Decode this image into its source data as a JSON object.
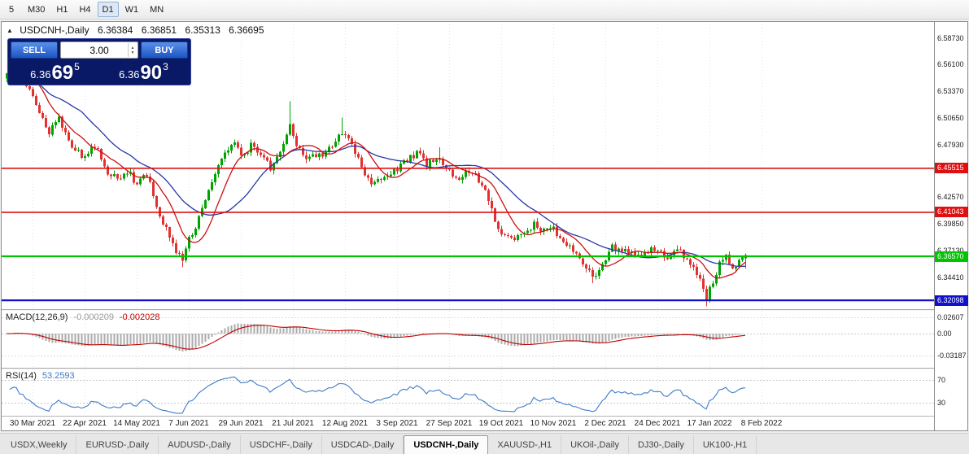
{
  "toolbar": {
    "timeframes": [
      {
        "label": "5"
      },
      {
        "label": "M30"
      },
      {
        "label": "H1"
      },
      {
        "label": "H4"
      },
      {
        "label": "D1",
        "active": true
      },
      {
        "label": "W1"
      },
      {
        "label": "MN"
      }
    ]
  },
  "chart": {
    "title": "USDCNH-,Daily",
    "ohlc": {
      "open": "6.36384",
      "high": "6.36851",
      "low": "6.35313",
      "close": "6.36695"
    },
    "trade_panel": {
      "sell_label": "SELL",
      "buy_label": "BUY",
      "volume": "3.00",
      "bid": {
        "small": "6.36",
        "main": "69",
        "sup": "5"
      },
      "ask": {
        "small": "6.36",
        "main": "90",
        "sup": "3"
      }
    },
    "hlines": [
      {
        "label": "6.45515",
        "value": 6.45515,
        "color_key": "hline_red"
      },
      {
        "label": "6.41043",
        "value": 6.41043,
        "color_key": "hline_red"
      },
      {
        "label": "6.36570",
        "value": 6.3657,
        "color_key": "hline_green"
      },
      {
        "label": "6.32098",
        "value": 6.32098,
        "color_key": "hline_blue"
      }
    ],
    "scale_labels": [
      "6.58730",
      "6.56100",
      "6.53370",
      "6.50650",
      "6.47930",
      "6.42570",
      "6.39850",
      "6.37130",
      "6.34410"
    ]
  },
  "indicators": {
    "macd": {
      "name_label": "MACD(12,26,9)",
      "value": "-0.000209",
      "signal": "-0.002028",
      "scale": [
        "0.02607",
        "0.00",
        "-0.03187"
      ]
    },
    "rsi": {
      "name_label": "RSI(14)",
      "value": "53.2593",
      "levels": [
        "70",
        "30"
      ]
    }
  },
  "x_axis": {
    "dates": [
      "30 Mar 2021",
      "22 Apr 2021",
      "14 May 2021",
      "7 Jun 2021",
      "29 Jun 2021",
      "21 Jul 2021",
      "12 Aug 2021",
      "3 Sep 2021",
      "27 Sep 2021",
      "19 Oct 2021",
      "10 Nov 2021",
      "2 Dec 2021",
      "24 Dec 2021",
      "17 Jan 2022",
      "8 Feb 2022"
    ]
  },
  "tabs": [
    {
      "label": "USDX,Weekly"
    },
    {
      "label": "EURUSD-,Daily"
    },
    {
      "label": "AUDUSD-,Daily"
    },
    {
      "label": "USDCHF-,Daily"
    },
    {
      "label": "USDCAD-,Daily"
    },
    {
      "label": "USDCNH-,Daily",
      "active": true
    },
    {
      "label": "XAUUSD-,H1"
    },
    {
      "label": "UKOil-,Daily"
    },
    {
      "label": "DJ30-,Daily"
    },
    {
      "label": "UK100-,H1"
    }
  ],
  "colors": {
    "bull": "#00A400",
    "bear": "#E03232",
    "ma_fast": "#CC1111",
    "ma_slow": "#2937A6",
    "macd_hist": "#ABABAB",
    "macd_signal": "#C00000",
    "rsi_line": "#3E7BC8",
    "hline_red": "#DD1111",
    "hline_green": "#00C400",
    "hline_blue": "#1111CC",
    "grid": "#E4E4E4",
    "level_dots": "#C8C8C8",
    "panel_bg": "#0A1966",
    "button_blue": "#2A66D9"
  },
  "chart_data": {
    "type": "candlestick",
    "symbol": "USDCNH",
    "timeframe": "Daily",
    "candle_count": 228,
    "price_axis": {
      "min": 6.3136,
      "max": 6.6014
    },
    "last_candle": {
      "open": 6.36384,
      "high": 6.36851,
      "low": 6.35313,
      "close": 6.36695
    },
    "close_anchors": [
      [
        0,
        6.548
      ],
      [
        2,
        6.558
      ],
      [
        5,
        6.545
      ],
      [
        9,
        6.52
      ],
      [
        13,
        6.492
      ],
      [
        16,
        6.506
      ],
      [
        20,
        6.478
      ],
      [
        24,
        6.466
      ],
      [
        27,
        6.479
      ],
      [
        31,
        6.452
      ],
      [
        34,
        6.444
      ],
      [
        37,
        6.452
      ],
      [
        40,
        6.44
      ],
      [
        43,
        6.45
      ],
      [
        46,
        6.417
      ],
      [
        49,
        6.392
      ],
      [
        52,
        6.372
      ],
      [
        54,
        6.364
      ],
      [
        56,
        6.383
      ],
      [
        58,
        6.396
      ],
      [
        61,
        6.424
      ],
      [
        64,
        6.452
      ],
      [
        67,
        6.47
      ],
      [
        70,
        6.483
      ],
      [
        72,
        6.466
      ],
      [
        75,
        6.479
      ],
      [
        78,
        6.47
      ],
      [
        81,
        6.455
      ],
      [
        84,
        6.47
      ],
      [
        87,
        6.497
      ],
      [
        89,
        6.48
      ],
      [
        92,
        6.465
      ],
      [
        96,
        6.468
      ],
      [
        100,
        6.477
      ],
      [
        103,
        6.492
      ],
      [
        106,
        6.479
      ],
      [
        109,
        6.458
      ],
      [
        112,
        6.437
      ],
      [
        115,
        6.446
      ],
      [
        119,
        6.453
      ],
      [
        123,
        6.462
      ],
      [
        126,
        6.472
      ],
      [
        129,
        6.458
      ],
      [
        132,
        6.466
      ],
      [
        135,
        6.453
      ],
      [
        139,
        6.447
      ],
      [
        143,
        6.451
      ],
      [
        146,
        6.44
      ],
      [
        148,
        6.425
      ],
      [
        150,
        6.4
      ],
      [
        153,
        6.387
      ],
      [
        156,
        6.382
      ],
      [
        159,
        6.392
      ],
      [
        162,
        6.398
      ],
      [
        165,
        6.391
      ],
      [
        168,
        6.393
      ],
      [
        171,
        6.382
      ],
      [
        174,
        6.372
      ],
      [
        177,
        6.36
      ],
      [
        180,
        6.343
      ],
      [
        183,
        6.358
      ],
      [
        186,
        6.375
      ],
      [
        189,
        6.371
      ],
      [
        193,
        6.366
      ],
      [
        197,
        6.371
      ],
      [
        200,
        6.374
      ],
      [
        203,
        6.362
      ],
      [
        206,
        6.373
      ],
      [
        209,
        6.363
      ],
      [
        212,
        6.347
      ],
      [
        214,
        6.333
      ],
      [
        215,
        6.324
      ],
      [
        217,
        6.34
      ],
      [
        219,
        6.36
      ],
      [
        221,
        6.368
      ],
      [
        223,
        6.352
      ],
      [
        225,
        6.359
      ],
      [
        227,
        6.36695
      ]
    ],
    "high_spikes": [
      [
        2,
        0.01
      ],
      [
        87,
        0.02
      ],
      [
        103,
        0.016
      ],
      [
        133,
        0.01
      ]
    ],
    "low_spikes": [
      [
        54,
        0.004
      ],
      [
        180,
        0.005
      ],
      [
        215,
        0.006
      ]
    ],
    "moving_averages": [
      {
        "period": 10,
        "color_key": "ma_fast"
      },
      {
        "period": 24,
        "color_key": "ma_slow"
      }
    ],
    "x_tick_first_index": 8,
    "x_tick_step": 16
  }
}
